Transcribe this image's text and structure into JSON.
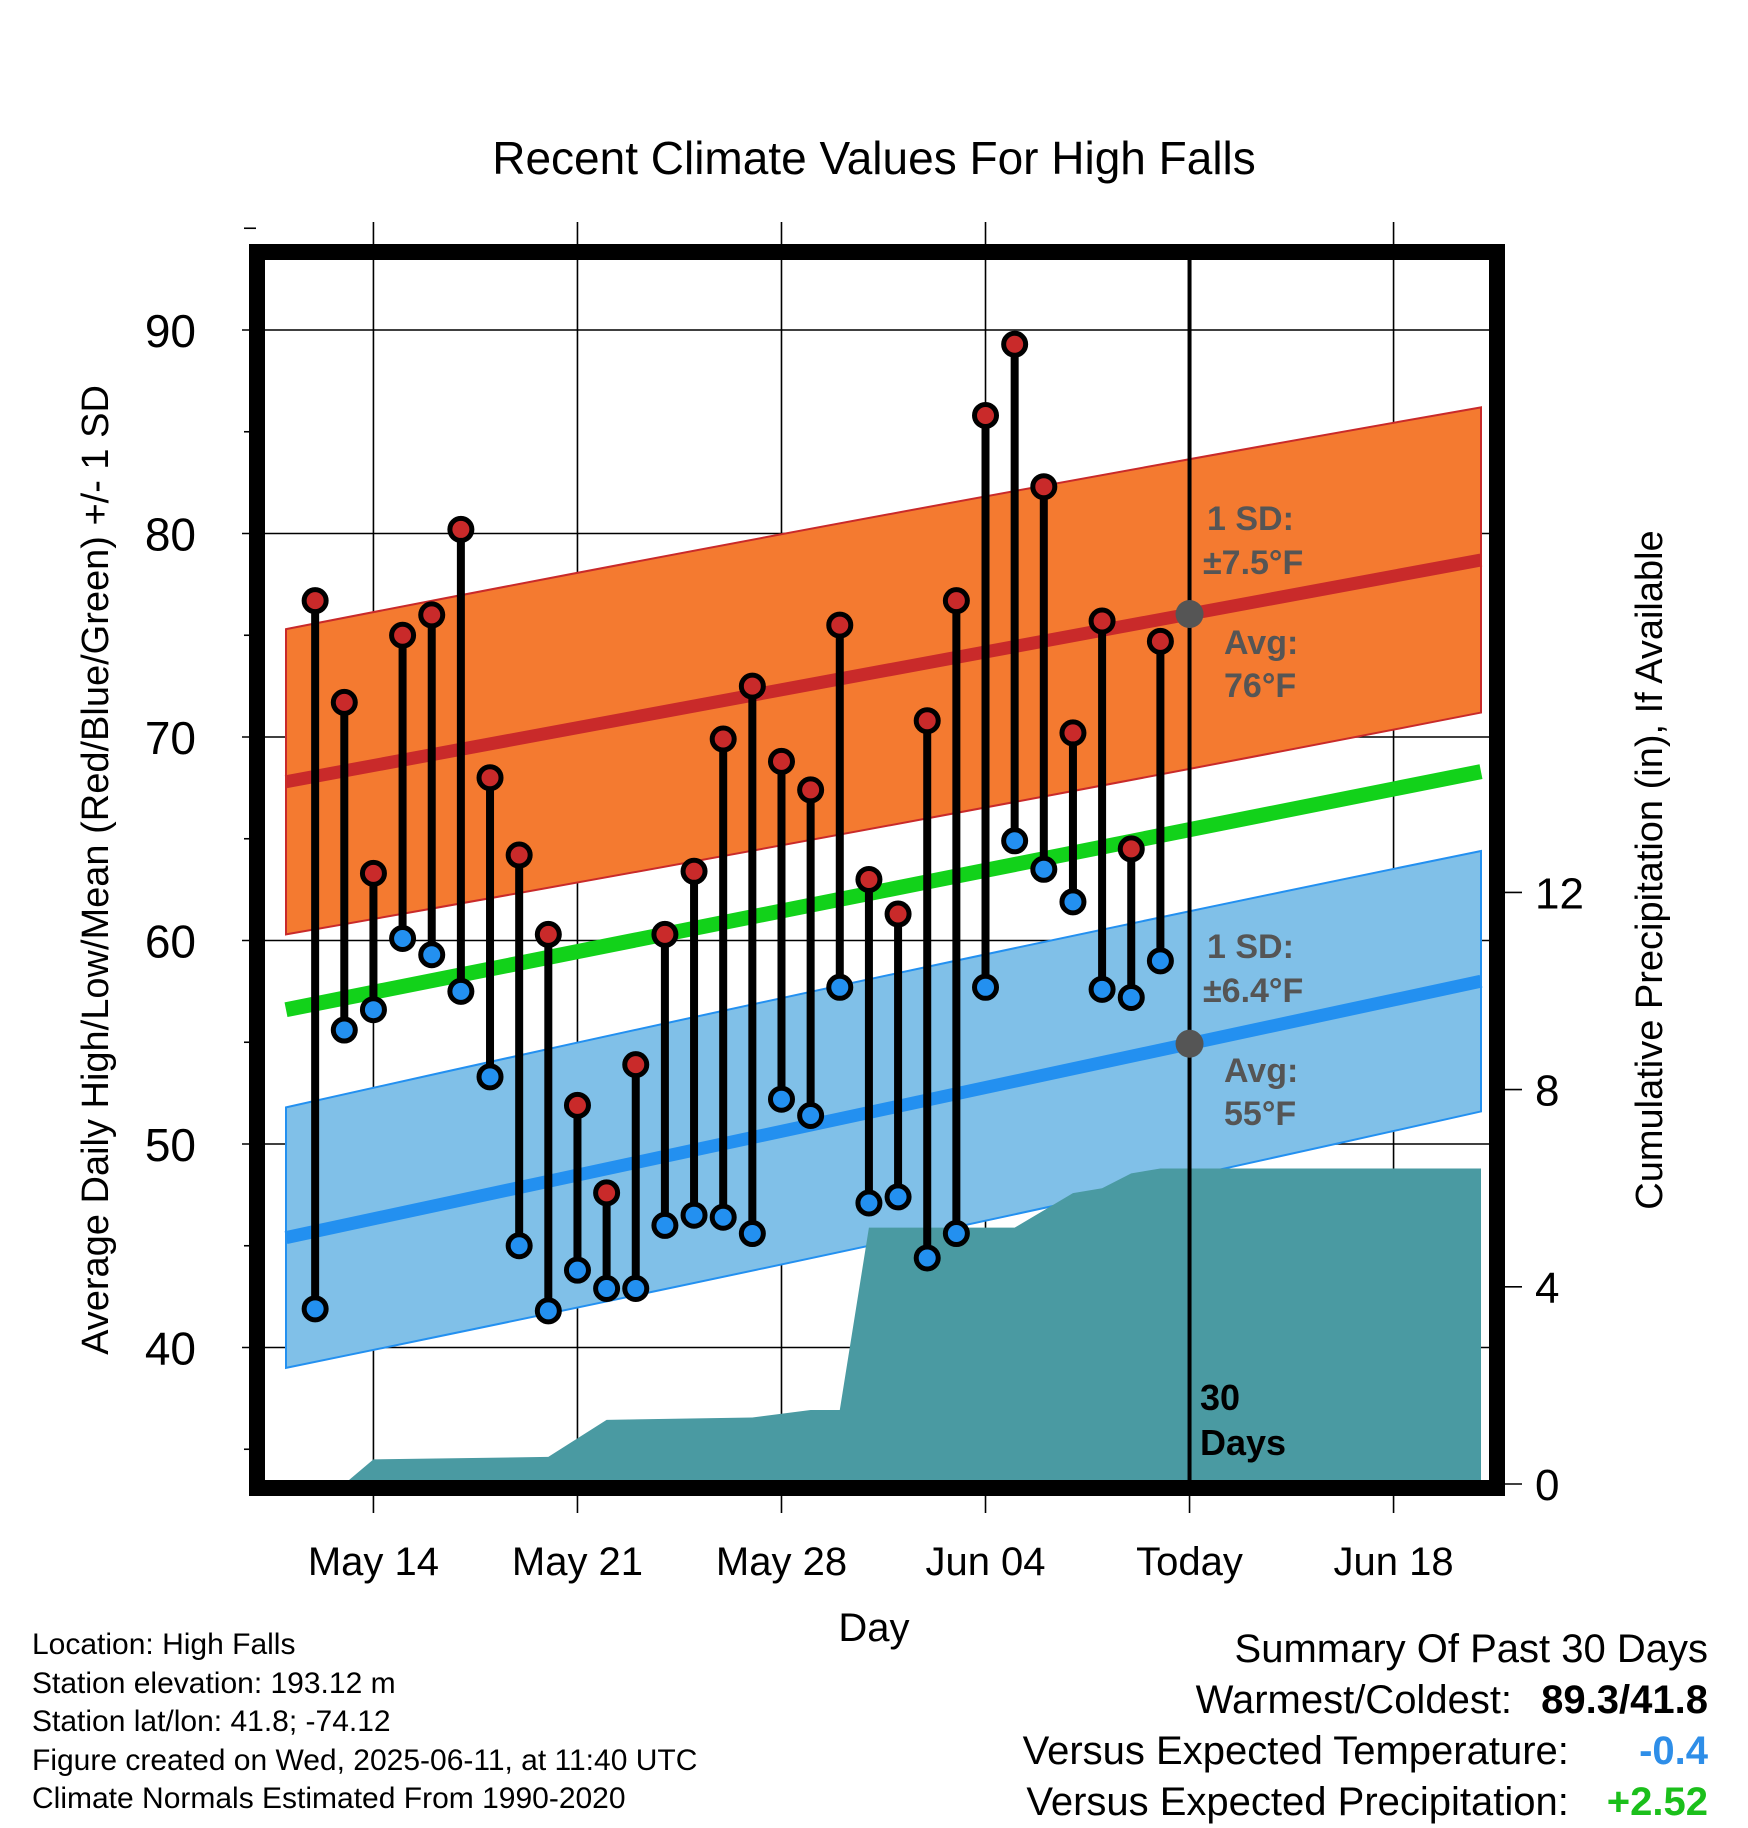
{
  "chart_data": {
    "type": "line",
    "title": "Recent Climate Values For High Falls",
    "xlabel": "Day",
    "ylabel": "Average Daily High/Low/Mean (Red/Blue/Green) +/- 1 SD",
    "y2label": "Cumulative Precipitation (in), If Available",
    "x_tick_labels": [
      "May 14",
      "May 21",
      "May 28",
      "Jun 04",
      "Today",
      "Jun 18"
    ],
    "x_range": [
      "2025-05-11",
      "2025-06-21"
    ],
    "ylim": [
      34,
      95
    ],
    "yticks": [
      40,
      50,
      60,
      70,
      80,
      90
    ],
    "y2lim": [
      0,
      15.5
    ],
    "y2ticks": [
      0,
      4,
      8,
      12
    ],
    "today": "2025-06-11",
    "period_label": [
      "30",
      "Days"
    ],
    "observed_days": [
      "2025-05-12",
      "2025-05-13",
      "2025-05-14",
      "2025-05-15",
      "2025-05-16",
      "2025-05-17",
      "2025-05-18",
      "2025-05-19",
      "2025-05-20",
      "2025-05-21",
      "2025-05-22",
      "2025-05-23",
      "2025-05-24",
      "2025-05-25",
      "2025-05-26",
      "2025-05-27",
      "2025-05-28",
      "2025-05-29",
      "2025-05-30",
      "2025-05-31",
      "2025-06-01",
      "2025-06-02",
      "2025-06-03",
      "2025-06-04",
      "2025-06-05",
      "2025-06-06",
      "2025-06-07",
      "2025-06-08",
      "2025-06-09",
      "2025-06-10"
    ],
    "daily_high": [
      76.7,
      71.7,
      63.3,
      75.0,
      76.0,
      80.2,
      68.0,
      64.2,
      60.3,
      51.9,
      47.6,
      53.9,
      60.3,
      63.4,
      69.9,
      72.5,
      68.8,
      67.4,
      75.5,
      63.0,
      61.3,
      70.8,
      76.7,
      85.8,
      89.3,
      82.3,
      70.2,
      75.7,
      64.5,
      74.7
    ],
    "daily_low": [
      41.9,
      55.6,
      56.6,
      60.1,
      59.3,
      57.5,
      53.3,
      45.0,
      41.8,
      43.8,
      42.9,
      42.9,
      46.0,
      46.5,
      46.4,
      45.6,
      52.2,
      51.4,
      57.7,
      47.1,
      47.4,
      44.4,
      45.6,
      57.7,
      64.9,
      63.5,
      61.9,
      57.6,
      57.2,
      59.0
    ],
    "normal_days": [
      "2025-05-11",
      "2025-06-21"
    ],
    "normal_high": [
      67.8,
      78.7
    ],
    "normal_high_sd": 7.5,
    "normal_low": [
      45.4,
      58.0
    ],
    "normal_low_sd": 6.4,
    "normal_mean": [
      56.6,
      68.3
    ],
    "precip_days": [
      "2025-05-11",
      "2025-05-13",
      "2025-05-14",
      "2025-05-20",
      "2025-05-22",
      "2025-05-27",
      "2025-05-29",
      "2025-05-30",
      "2025-05-31",
      "2025-06-05",
      "2025-06-07",
      "2025-06-08",
      "2025-06-09",
      "2025-06-10",
      "2025-06-21"
    ],
    "precip_cumulative": [
      0.0,
      0.0,
      0.5,
      0.55,
      1.3,
      1.35,
      1.5,
      1.5,
      5.2,
      5.2,
      5.9,
      6.0,
      6.3,
      6.4,
      6.4
    ],
    "annotations": {
      "high_sd_label": "1 SD:",
      "high_sd_value": "±7.5°F",
      "high_avg_label": "Avg:",
      "high_avg_value": "76°F",
      "low_sd_label": "1 SD:",
      "low_sd_value": "±6.4°F",
      "low_avg_label": "Avg:",
      "low_avg_value": "55°F"
    },
    "colors": {
      "high": "#c92a2a",
      "low": "#2390f0",
      "high_band": "#f47a30",
      "low_band": "#80c0e8",
      "mean": "#12d21a",
      "precip": "#4a9aa2",
      "annotation": "#555555"
    }
  },
  "footer": {
    "location": "Location: High Falls",
    "elevation": "Station elevation: 193.12 m",
    "latlon": "Station lat/lon: 41.8; -74.12",
    "created": "Figure created on Wed, 2025-06-11, at 11:40 UTC",
    "normals": "Climate Normals Estimated From 1990-2020"
  },
  "summary": {
    "title": "Summary Of Past 30 Days",
    "warm_cold_label": "Warmest/Coldest:",
    "warm_cold_value": "89.3/41.8",
    "temp_label": "Versus Expected Temperature:",
    "temp_value": "-0.4",
    "temp_color": "#2e8ee8",
    "precip_label": "Versus Expected Precipitation:",
    "precip_value": "+2.52",
    "precip_color": "#1bbf1b"
  }
}
